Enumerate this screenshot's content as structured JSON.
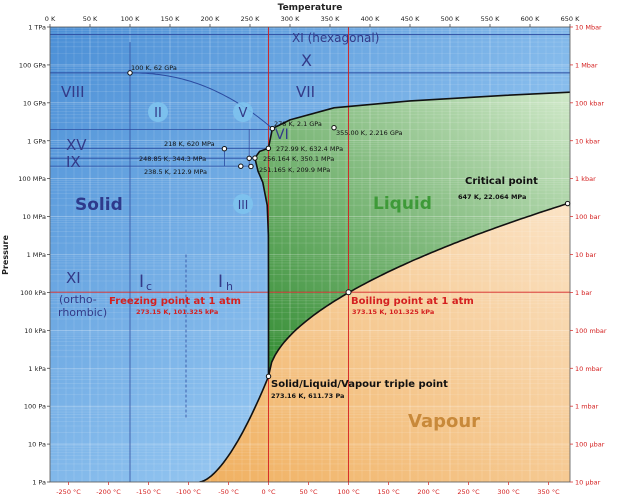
{
  "chart_data": {
    "type": "area",
    "title": "",
    "top_axis_label": "Temperature",
    "y_axis_label": "Pressure",
    "top_ticks": [
      "0 K",
      "50 K",
      "100 K",
      "150 K",
      "200 K",
      "250 K",
      "300 K",
      "350 K",
      "400 K",
      "450 K",
      "500 K",
      "550 K",
      "600 K",
      "650 K"
    ],
    "bottom_ticks": [
      "-250 °C",
      "-200 °C",
      "-150 °C",
      "-100 °C",
      "-50 °C",
      "0 °C",
      "50 °C",
      "100 °C",
      "150 °C",
      "200 °C",
      "250 °C",
      "300 °C",
      "350 °C"
    ],
    "left_ticks": [
      "1 TPa",
      "100 GPa",
      "10 GPa",
      "1 GPa",
      "100 MPa",
      "10 MPa",
      "1 MPa",
      "100 kPa",
      "10 kPa",
      "1 kPa",
      "100 Pa",
      "10 Pa",
      "1 Pa"
    ],
    "right_ticks": [
      "10 Mbar",
      "1 Mbar",
      "100 kbar",
      "10 kbar",
      "1 kbar",
      "100 bar",
      "10 bar",
      "1 bar",
      "100 mbar",
      "10 mbar",
      "1 mbar",
      "100 µbar",
      "10 µbar"
    ],
    "xlim_K": [
      0,
      650
    ],
    "ylim_log10_Pa": [
      0,
      12
    ],
    "regions": [
      {
        "label": "Solid",
        "color": "#3a7fcf"
      },
      {
        "label": "Liquid",
        "color": "#5aa84a"
      },
      {
        "label": "Vapour",
        "color": "#e8a95a"
      }
    ],
    "phase_labels": [
      "XI (hexagonal)",
      "X",
      "VIII",
      "VII",
      "VI",
      "XV",
      "IX",
      "II",
      "V",
      "III",
      "XI",
      "(ortho-",
      "rhombic)",
      "I",
      "c",
      "I",
      "h"
    ],
    "points": [
      {
        "T_K": 100,
        "label": "100 K, 62 GPa"
      },
      {
        "T_K": 278,
        "label": "278 K, 2.1 GPa"
      },
      {
        "T_K": 355,
        "label": "355.00 K, 2.216 GPa"
      },
      {
        "T_K": 218,
        "label": "218 K, 620 MPa"
      },
      {
        "T_K": 249,
        "label": "248.85 K, 344.3 MPa"
      },
      {
        "T_K": 273,
        "label": "272.99 K, 632.4 MPa"
      },
      {
        "T_K": 256,
        "label": "256.164 K, 350.1 MPa"
      },
      {
        "T_K": 238,
        "label": "238.5 K, 212.9 MPa"
      },
      {
        "T_K": 251,
        "label": "251.165 K, 209.9 MPa"
      },
      {
        "T_K": 647,
        "label": "647 K, 22.064 MPa"
      },
      {
        "T_K": 273.16,
        "label": "273.16 K, 611.73 Pa"
      }
    ],
    "annotations": [
      {
        "title": "Critical point",
        "value": "647 K, 22.064 MPa"
      },
      {
        "title": "Freezing point at 1 atm",
        "value": "273.15 K, 101.325 kPa"
      },
      {
        "title": "Boiling point at 1 atm",
        "value": "373.15 K, 101.325 kPa"
      },
      {
        "title": "Solid/Liquid/Vapour triple point",
        "value": "273.16 K, 611.73 Pa"
      }
    ],
    "colors": {
      "solid": "#5c9fdf",
      "liquid": "#66b356",
      "vapour": "#f0c08a",
      "axis_red": "#d42020",
      "label_dark": "#333a88",
      "liquid_label": "#3e9a38",
      "vapour_label": "#c8893a"
    }
  }
}
